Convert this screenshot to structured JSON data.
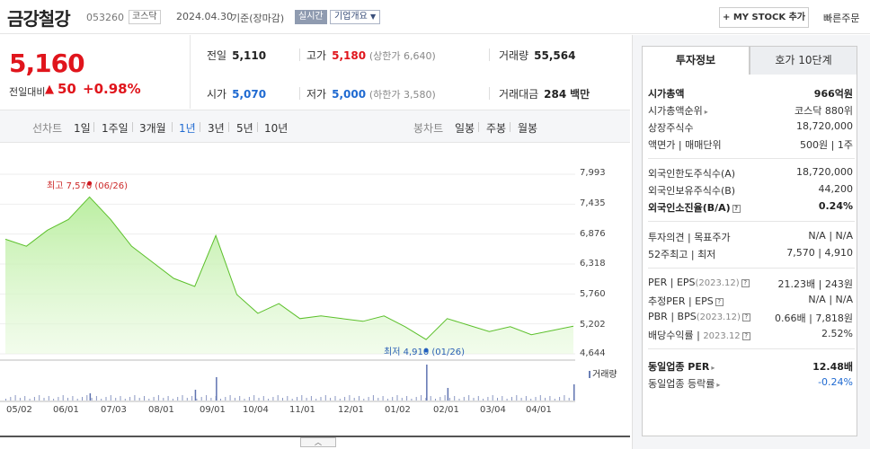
{
  "header": {
    "name": "금강철강",
    "code": "053260",
    "market": "코스닥",
    "date": "2024.04.30",
    "basis": "기준(장마감)",
    "realtime": "실시간",
    "overview": "기업개요",
    "mystock": "+ MY STOCK 추가",
    "quick_order": "빠른주문"
  },
  "price": {
    "current": "5,160",
    "change_label": "전일대비",
    "change_value": "50",
    "change_pct": "+0.98%"
  },
  "stats": {
    "prev_close_label": "전일",
    "prev_close": "5,110",
    "high_label": "고가",
    "high": "5,180",
    "upper_limit": "(상한가 6,640)",
    "volume_label": "거래량",
    "volume": "55,564",
    "open_label": "시가",
    "open": "5,070",
    "low_label": "저가",
    "low": "5,000",
    "lower_limit": "(하한가 3,580)",
    "trade_value_label": "거래대금",
    "trade_value": "284",
    "trade_value_unit": "백만"
  },
  "periods": {
    "line_chart": "선차트",
    "p1d": "1일",
    "p1w": "1주일",
    "p3m": "3개월",
    "p1y": "1년",
    "p3y": "3년",
    "p5y": "5년",
    "p10y": "10년",
    "candle_chart": "봉차트",
    "daily": "일봉",
    "weekly": "주봉",
    "monthly": "월봉"
  },
  "chart_data": {
    "type": "area",
    "annotation_high": "최고 7,570 (06/26)",
    "annotation_low": "최저 4,910 (01/26)",
    "y_ticks": [
      "7,993",
      "7,435",
      "6,876",
      "6,318",
      "5,760",
      "5,202",
      "4,644"
    ],
    "ylim": [
      4644,
      7993
    ],
    "x_ticks": [
      "05/02",
      "06/01",
      "07/03",
      "08/01",
      "09/01",
      "10/04",
      "11/01",
      "12/01",
      "01/02",
      "02/01",
      "03/04",
      "04/01"
    ],
    "volume_label": "거래량",
    "x": [
      "05/02",
      "05/15",
      "06/01",
      "06/15",
      "06/26",
      "07/03",
      "07/15",
      "08/01",
      "08/15",
      "09/01",
      "09/04",
      "09/15",
      "10/04",
      "10/20",
      "11/01",
      "11/15",
      "12/01",
      "12/15",
      "01/02",
      "01/15",
      "01/26",
      "02/01",
      "02/15",
      "03/04",
      "03/15",
      "04/01",
      "04/15",
      "04/30"
    ],
    "values": [
      6780,
      6650,
      6950,
      7150,
      7570,
      7150,
      6650,
      6350,
      6050,
      5900,
      6850,
      5750,
      5400,
      5580,
      5300,
      5350,
      5300,
      5250,
      5350,
      5150,
      4910,
      5300,
      5180,
      5060,
      5150,
      5000,
      5080,
      5160
    ],
    "series": [
      {
        "name": "거래량"
      }
    ]
  },
  "collapse_glyph": "︿",
  "side": {
    "tab_invest": "투자정보",
    "tab_quote": "호가 10단계",
    "rows": {
      "mcap_label": "시가총액",
      "mcap": "966억원",
      "mcap_rank_label": "시가총액순위",
      "mcap_rank": "코스닥 880위",
      "shares_label": "상장주식수",
      "shares": "18,720,000",
      "par_label": "액면가",
      "par_sep": "매매단위",
      "par": "500원",
      "unit": "1주",
      "foreign_limit_label": "외국인한도주식수(A)",
      "foreign_limit": "18,720,000",
      "foreign_hold_label": "외국인보유주식수(B)",
      "foreign_hold": "44,200",
      "foreign_ratio_label": "외국인소진율(B/A)",
      "foreign_ratio": "0.24%",
      "opinion_label": "투자의견",
      "target_label": "목표주가",
      "opinion": "N/A",
      "target": "N/A",
      "w52_label": "52주최고",
      "w52_low_label": "최저",
      "w52_high": "7,570",
      "w52_low": "4,910",
      "per_label": "PER",
      "eps_label": "EPS",
      "eps_period": "(2023.12)",
      "per": "21.23배",
      "eps": "243원",
      "est_per_label": "추정PER",
      "est_eps_label": "EPS",
      "est_per": "N/A",
      "est_eps": "N/A",
      "pbr_label": "PBR",
      "bps_label": "BPS",
      "bps_period": "(2023.12)",
      "pbr": "0.66배",
      "bps": "7,818원",
      "div_label": "배당수익률",
      "div_period": "2023.12",
      "div": "2.52%",
      "sector_per_label": "동일업종 PER",
      "sector_per": "12.48배",
      "sector_chg_label": "동일업종 등락률",
      "sector_chg": "-0.24%"
    }
  }
}
